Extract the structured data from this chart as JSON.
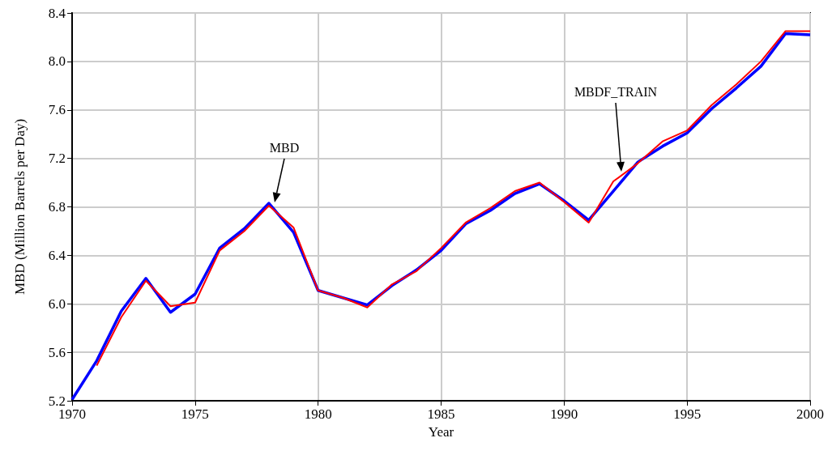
{
  "chart_data": {
    "type": "line",
    "xlabel": "Year",
    "ylabel": "MBD (Million Barrels per Day)",
    "x": [
      1970,
      1971,
      1972,
      1973,
      1974,
      1975,
      1976,
      1977,
      1978,
      1979,
      1980,
      1981,
      1982,
      1983,
      1984,
      1985,
      1986,
      1987,
      1988,
      1989,
      1990,
      1991,
      1992,
      1993,
      1994,
      1995,
      1996,
      1997,
      1998,
      1999,
      2000
    ],
    "series": [
      {
        "color": "#0000ff",
        "values": [
          5.21,
          5.53,
          5.94,
          6.21,
          5.93,
          6.08,
          6.46,
          6.62,
          6.83,
          6.59,
          6.11,
          6.05,
          5.99,
          6.15,
          6.28,
          6.44,
          6.66,
          6.77,
          6.91,
          6.99,
          6.85,
          6.69,
          6.93,
          7.17,
          7.3,
          7.41,
          7.61,
          7.78,
          7.96,
          8.23,
          8.22
        ]
      },
      {
        "color": "#ff0000",
        "values": [
          null,
          5.49,
          5.89,
          6.19,
          5.98,
          6.01,
          6.44,
          6.6,
          6.81,
          6.63,
          6.11,
          6.05,
          5.97,
          6.16,
          6.27,
          6.46,
          6.67,
          6.79,
          6.93,
          7.0,
          6.84,
          6.67,
          7.01,
          7.16,
          7.34,
          7.43,
          7.64,
          7.81,
          8.0,
          8.25,
          8.25
        ]
      }
    ],
    "xlim": [
      1970,
      2000
    ],
    "xticks": [
      1970,
      1975,
      1980,
      1985,
      1990,
      1995,
      2000
    ],
    "ylim": [
      5.2,
      8.4
    ],
    "yticks": [
      {
        "value": 5.2,
        "label": "5.2"
      },
      {
        "value": 5.6,
        "label": "5.6"
      },
      {
        "value": 6.0,
        "label": "6.0"
      },
      {
        "value": 6.4,
        "label": "6.4"
      },
      {
        "value": 6.8,
        "label": "6.8"
      },
      {
        "value": 7.2,
        "label": "7.2"
      },
      {
        "value": 7.6,
        "label": "7.6"
      },
      {
        "value": 8.0,
        "label": "8.0"
      },
      {
        "value": 8.4,
        "label": "8.4"
      }
    ],
    "grid": true,
    "marker": "none",
    "line_style": "solid",
    "annotations": [
      "MBD",
      "MBDF_TRAIN"
    ]
  }
}
